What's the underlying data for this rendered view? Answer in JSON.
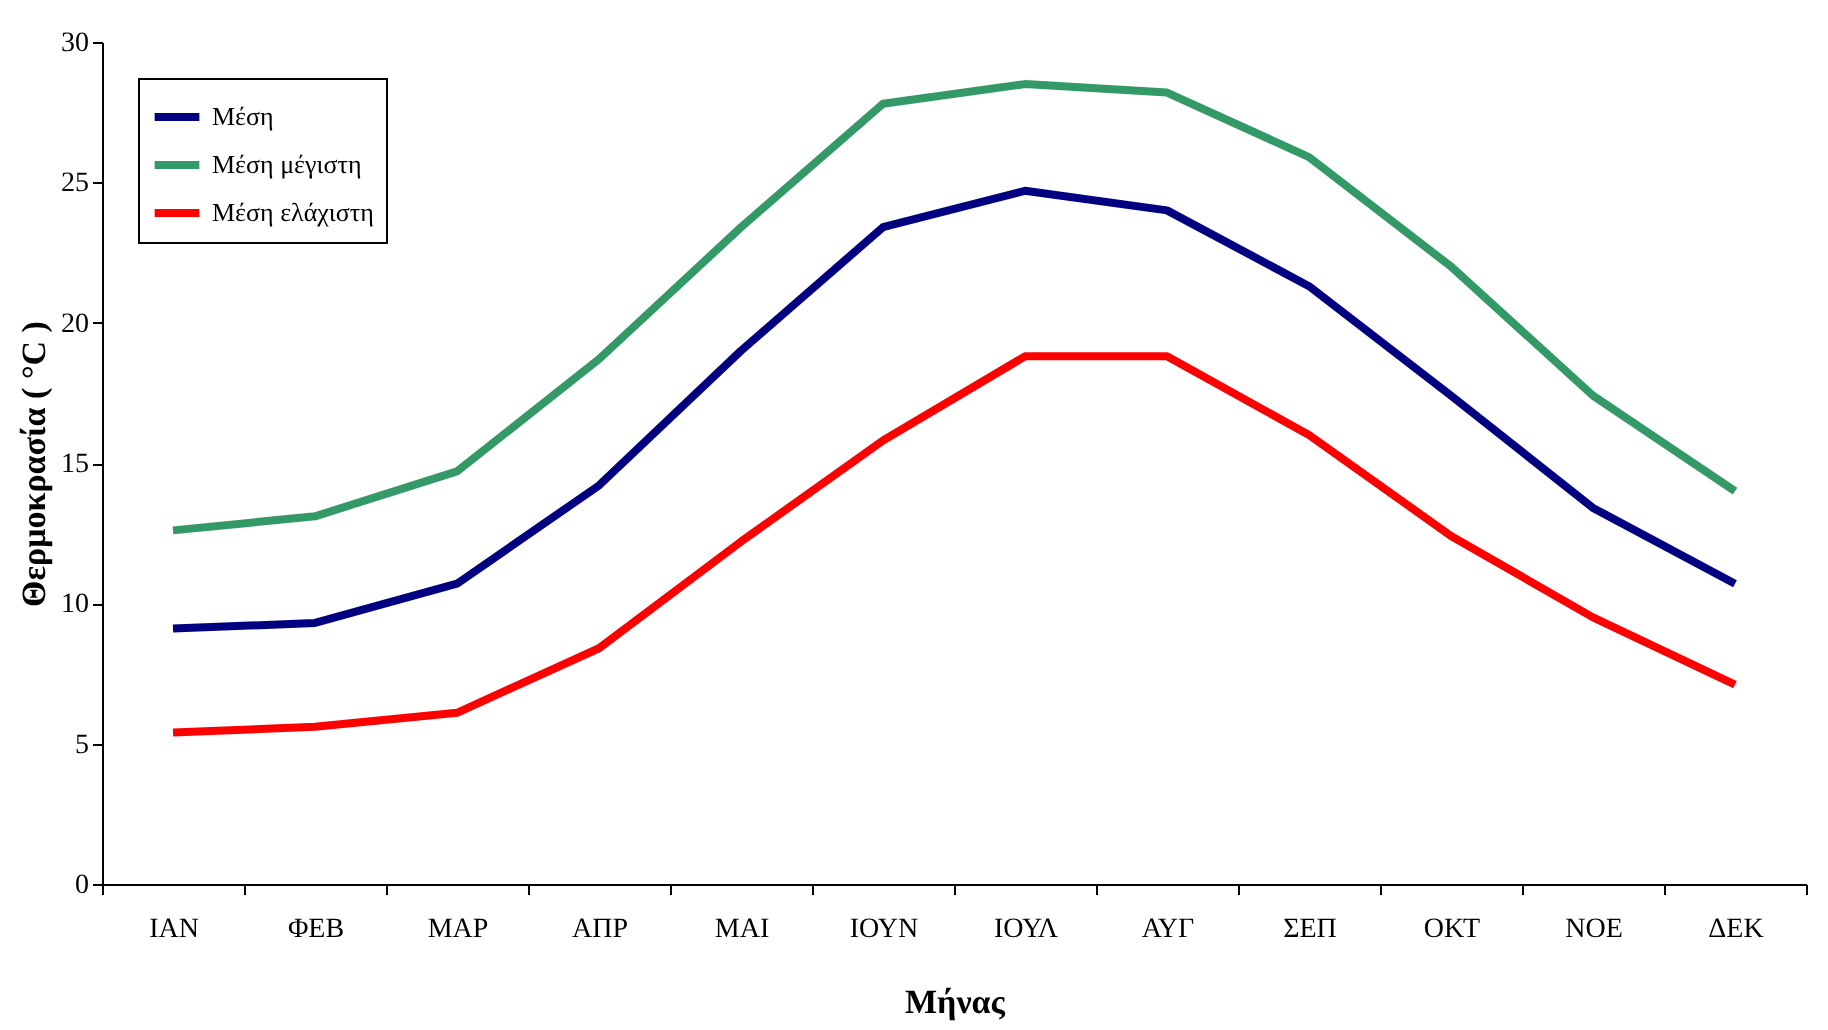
{
  "chart_data": {
    "type": "line",
    "xlabel": "Μήνας",
    "ylabel": "Θερμοκρασία ( °C )",
    "categories": [
      "ΙΑΝ",
      "ΦΕΒ",
      "ΜΑΡ",
      "ΑΠΡ",
      "ΜΑΙ",
      "ΙΟΥΝ",
      "ΙΟΥΛ",
      "ΑΥΓ",
      "ΣΕΠ",
      "ΟΚΤ",
      "ΝΟΕ",
      "ΔΕΚ"
    ],
    "series": [
      {
        "name": "Μέση",
        "color": "#000080",
        "values": [
          9.1,
          9.3,
          10.7,
          14.2,
          19.0,
          23.4,
          24.7,
          24.0,
          21.3,
          17.4,
          13.4,
          10.7
        ]
      },
      {
        "name": "Μέση μέγιστη",
        "color": "#339966",
        "values": [
          12.6,
          13.1,
          14.7,
          18.7,
          23.4,
          27.8,
          28.5,
          28.2,
          25.9,
          22.0,
          17.4,
          14.0
        ]
      },
      {
        "name": "Μέση ελάχιστη",
        "color": "#ff0000",
        "values": [
          5.4,
          5.6,
          6.1,
          8.4,
          12.2,
          15.8,
          18.8,
          18.8,
          16.0,
          12.4,
          9.5,
          7.1
        ]
      }
    ],
    "ylim": [
      0,
      30
    ],
    "yticks": [
      0,
      5,
      10,
      15,
      20,
      25,
      30
    ],
    "grid": false,
    "legend": "top left",
    "marker": "none",
    "line_style": "solid"
  }
}
